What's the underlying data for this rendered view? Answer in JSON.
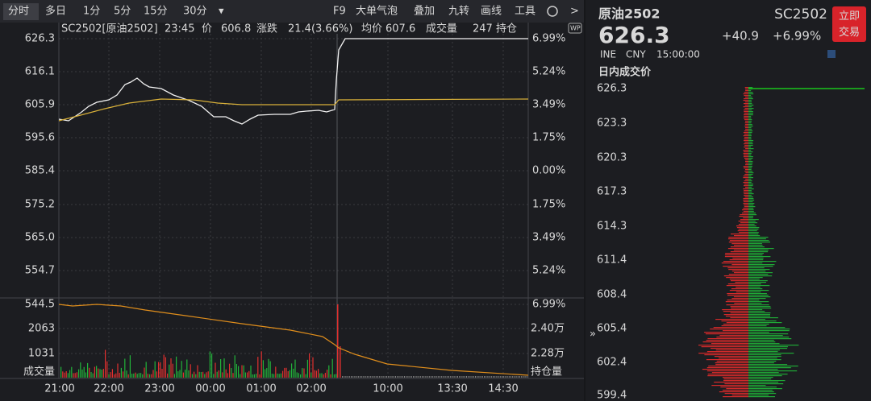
{
  "toolbar": {
    "tabs": [
      "分时",
      "多日",
      "1分",
      "5分",
      "15分",
      "30分",
      "▾"
    ],
    "tools": [
      "F9",
      "大单气泡",
      "叠加",
      "九转",
      "画线",
      "工具"
    ]
  },
  "info": {
    "symbol": "SC2502[原油2502]",
    "time": "23:45",
    "price_label": "价",
    "price": "606.8",
    "change_label": "涨跌",
    "change": "21.4(3.66%)",
    "avg_label": "均价",
    "avg": "607.6",
    "volume_label": "成交量",
    "volume": "247",
    "oi_label": "持仓",
    "badge": "WP"
  },
  "price_axis": {
    "left": [
      "626.3",
      "616.1",
      "605.9",
      "595.6",
      "585.4",
      "575.2",
      "565.0",
      "554.7",
      "544.5"
    ],
    "right": [
      "6.99%",
      "5.24%",
      "3.49%",
      "1.75%",
      "0.00%",
      "1.75%",
      "3.49%",
      "5.24%",
      "6.99%"
    ]
  },
  "volume_axis": {
    "left": [
      "2063",
      "1031",
      "成交量"
    ],
    "right": [
      "2.40万",
      "2.28万",
      "持仓量"
    ]
  },
  "time_axis": [
    "21:00",
    "22:00",
    "23:00",
    "00:00",
    "01:00",
    "02:00",
    "10:00",
    "13:30",
    "14:30"
  ],
  "quote": {
    "name": "原油2502",
    "code": "SC2502",
    "last": "626.3",
    "change": "+40.9",
    "pct": "+6.99%",
    "button": "立即交易",
    "exchange": "INE",
    "currency": "CNY",
    "clock": "15:00:00",
    "section": "日内成交价"
  },
  "ladder": [
    "626.3",
    "623.3",
    "620.3",
    "617.3",
    "614.3",
    "611.4",
    "608.4",
    "605.4",
    "602.4",
    "599.4"
  ]
}
